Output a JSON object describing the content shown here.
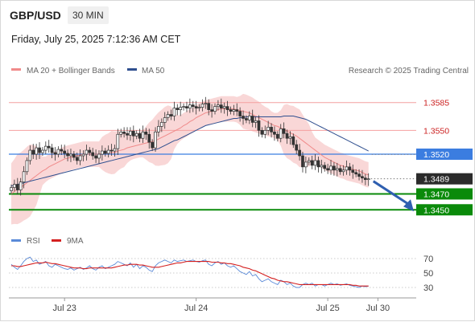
{
  "header": {
    "pair": "GBP/USD",
    "timeframe": "30 MIN",
    "datetime": "Friday, July 25, 2025 7:12:36 AM CET"
  },
  "legend": {
    "ma20_label": "MA 20 + Bollinger Bands",
    "ma50_label": "MA 50",
    "credit": "Research © 2025 Trading Central",
    "rsi_label": "RSI",
    "rsi9_label": "9MA"
  },
  "colors": {
    "ma20": "#f08a8a",
    "ma50": "#2f4f8f",
    "bollinger": "#f7c9c9",
    "resistance": "#f4a0a0",
    "resistance_text": "#cc2222",
    "pivot": "#3b7de0",
    "support": "#0a8a0a",
    "current": "#2b2b2b",
    "arrow": "#2f5fb0",
    "rsi": "#5a8ad8",
    "rsi_ma": "#d42020",
    "candle": "#333333"
  },
  "chart_data": [
    {
      "type": "candlestick",
      "name": "price",
      "ylim": [
        1.3425,
        1.3612
      ],
      "xlim": [
        0,
        130
      ],
      "x_ticks": [
        {
          "x": 17,
          "label": "Jul 23"
        },
        {
          "x": 59,
          "label": "Jul 24"
        },
        {
          "x": 101,
          "label": "Jul 25"
        },
        {
          "x": 117,
          "label": "Jul 30"
        }
      ],
      "levels": [
        {
          "value": 1.3585,
          "label": "1.3585",
          "kind": "resistance"
        },
        {
          "value": 1.355,
          "label": "1.3550",
          "kind": "resistance"
        },
        {
          "value": 1.352,
          "label": "1.3520",
          "kind": "pivot"
        },
        {
          "value": 1.3489,
          "label": "1.3489",
          "kind": "current"
        },
        {
          "value": 1.347,
          "label": "1.3470",
          "kind": "support"
        },
        {
          "value": 1.345,
          "label": "1.3450",
          "kind": "support"
        }
      ],
      "close": [
        1.3478,
        1.3482,
        1.3475,
        1.3485,
        1.3498,
        1.3512,
        1.3525,
        1.352,
        1.3528,
        1.3522,
        1.3525,
        1.353,
        1.3528,
        1.3522,
        1.352,
        1.3526,
        1.3524,
        1.3521,
        1.3518,
        1.352,
        1.3516,
        1.3512,
        1.3518,
        1.352,
        1.3525,
        1.3522,
        1.3518,
        1.3515,
        1.352,
        1.3524,
        1.3521,
        1.3525,
        1.3524,
        1.3527,
        1.3545,
        1.3548,
        1.3546,
        1.3544,
        1.3549,
        1.3543,
        1.3546,
        1.354,
        1.3548,
        1.3545,
        1.3535,
        1.3528,
        1.3548,
        1.3555,
        1.356,
        1.3566,
        1.357,
        1.3568,
        1.3578,
        1.3576,
        1.3579,
        1.358,
        1.3578,
        1.3582,
        1.358,
        1.3578,
        1.3579,
        1.3583,
        1.3584,
        1.3576,
        1.3574,
        1.358,
        1.3582,
        1.3578,
        1.358,
        1.3576,
        1.3574,
        1.3576,
        1.3574,
        1.3568,
        1.3565,
        1.3563,
        1.3568,
        1.356,
        1.3562,
        1.355,
        1.3545,
        1.355,
        1.3554,
        1.3548,
        1.3545,
        1.354,
        1.3552,
        1.3546,
        1.354,
        1.3542,
        1.3532,
        1.3525,
        1.3518,
        1.3504,
        1.351,
        1.3512,
        1.3506,
        1.3512,
        1.3504,
        1.3506,
        1.3502,
        1.35,
        1.3505,
        1.35,
        1.3502,
        1.3498,
        1.35,
        1.3504,
        1.35,
        1.3497,
        1.3495,
        1.3492,
        1.349,
        1.3488,
        1.3489
      ],
      "ma20": [
        1.347,
        1.3473,
        1.3476,
        1.3478,
        1.3481,
        1.3484,
        1.3487,
        1.349,
        1.3493,
        1.3496,
        1.3499,
        1.3501,
        1.3504,
        1.3506,
        1.3508,
        1.351,
        1.3512,
        1.3514,
        1.3515,
        1.3516,
        1.3517,
        1.3518,
        1.3519,
        1.352,
        1.352,
        1.352,
        1.352,
        1.352,
        1.352,
        1.3521,
        1.3521,
        1.3521,
        1.3522,
        1.3522,
        1.3524,
        1.3525,
        1.3526,
        1.3528,
        1.3529,
        1.353,
        1.3531,
        1.3532,
        1.3533,
        1.3534,
        1.3535,
        1.3536,
        1.3537,
        1.3539,
        1.3541,
        1.3543,
        1.3545,
        1.3547,
        1.3549,
        1.3551,
        1.3553,
        1.3556,
        1.3558,
        1.3561,
        1.3563,
        1.3566,
        1.3568,
        1.357,
        1.3572,
        1.3573,
        1.3574,
        1.3575,
        1.3576,
        1.3577,
        1.3577,
        1.3577,
        1.3577,
        1.3577,
        1.3576,
        1.3575,
        1.3574,
        1.3573,
        1.3572,
        1.357,
        1.3568,
        1.3566,
        1.3564,
        1.3562,
        1.356,
        1.3558,
        1.3556,
        1.3555,
        1.3553,
        1.3551,
        1.3549,
        1.3547,
        1.3545,
        1.3543,
        1.354,
        1.3537,
        1.3534,
        1.3531,
        1.3528,
        1.3525,
        1.3522,
        1.3519,
        1.3516,
        1.3514,
        1.3512,
        1.351,
        1.3508,
        1.3506,
        1.3505,
        1.3503,
        1.3502,
        1.3501,
        1.35,
        1.3499,
        1.3497,
        1.3495,
        1.3494
      ],
      "ma50": [
        1.348,
        1.3481,
        1.3482,
        1.3483,
        1.3484,
        1.3485,
        1.3486,
        1.3487,
        1.3488,
        1.3489,
        1.349,
        1.3491,
        1.3492,
        1.3493,
        1.3494,
        1.3495,
        1.3496,
        1.3497,
        1.3498,
        1.3499,
        1.35,
        1.3501,
        1.3502,
        1.3503,
        1.3504,
        1.3505,
        1.3506,
        1.3507,
        1.3508,
        1.3509,
        1.351,
        1.3511,
        1.3512,
        1.3513,
        1.3514,
        1.3515,
        1.3516,
        1.3517,
        1.3518,
        1.3519,
        1.352,
        1.3521,
        1.3522,
        1.3523,
        1.3524,
        1.3525,
        1.3526,
        1.3527,
        1.3529,
        1.3531,
        1.3533,
        1.3535,
        1.3537,
        1.3538,
        1.354,
        1.3542,
        1.3544,
        1.3546,
        1.3548,
        1.355,
        1.3552,
        1.3554,
        1.3556,
        1.3557,
        1.3558,
        1.3559,
        1.356,
        1.3561,
        1.3562,
        1.3563,
        1.3564,
        1.3565,
        1.3565,
        1.3566,
        1.3566,
        1.3567,
        1.3567,
        1.3567,
        1.3567,
        1.3567,
        1.3567,
        1.3567,
        1.3567,
        1.3567,
        1.3567,
        1.3567,
        1.3567,
        1.3568,
        1.3568,
        1.3568,
        1.3568,
        1.3567,
        1.3566,
        1.3565,
        1.3564,
        1.3562,
        1.356,
        1.3558,
        1.3556,
        1.3554,
        1.3552,
        1.355,
        1.3548,
        1.3546,
        1.3544,
        1.3542,
        1.354,
        1.3538,
        1.3536,
        1.3534,
        1.3532,
        1.353,
        1.3528,
        1.3526,
        1.3524
      ]
    },
    {
      "type": "line",
      "name": "rsi",
      "ylim": [
        20,
        80
      ],
      "y_ticks": [
        70,
        50,
        30
      ],
      "series": [
        {
          "name": "RSI",
          "values": [
            62,
            58,
            55,
            60,
            66,
            70,
            72,
            66,
            68,
            62,
            64,
            66,
            60,
            58,
            62,
            60,
            58,
            56,
            55,
            57,
            54,
            56,
            58,
            55,
            57,
            60,
            56,
            54,
            58,
            60,
            56,
            58,
            60,
            62,
            66,
            64,
            62,
            60,
            64,
            58,
            62,
            56,
            60,
            58,
            54,
            52,
            60,
            64,
            66,
            68,
            66,
            64,
            68,
            66,
            67,
            68,
            66,
            67,
            68,
            66,
            65,
            67,
            68,
            62,
            60,
            64,
            66,
            62,
            64,
            60,
            58,
            60,
            56,
            52,
            50,
            48,
            52,
            46,
            48,
            42,
            38,
            40,
            42,
            38,
            36,
            34,
            40,
            38,
            34,
            36,
            32,
            30,
            30,
            34,
            36,
            34,
            36,
            32,
            34,
            34,
            32,
            34,
            36,
            34,
            35,
            33,
            34,
            35,
            33,
            32,
            31,
            30,
            32,
            31,
            32
          ]
        },
        {
          "name": "9MA",
          "values": [
            60,
            60,
            59,
            59,
            60,
            61,
            62,
            63,
            64,
            64,
            64,
            65,
            64,
            63,
            63,
            62,
            61,
            60,
            59,
            58,
            57,
            57,
            57,
            56,
            56,
            57,
            57,
            57,
            57,
            57,
            57,
            57,
            57,
            58,
            59,
            60,
            61,
            61,
            62,
            62,
            62,
            61,
            61,
            60,
            59,
            58,
            58,
            58,
            59,
            60,
            61,
            62,
            63,
            64,
            64,
            65,
            66,
            66,
            66,
            66,
            66,
            66,
            66,
            66,
            65,
            65,
            65,
            64,
            64,
            63,
            63,
            62,
            61,
            60,
            58,
            57,
            56,
            54,
            53,
            51,
            49,
            47,
            45,
            43,
            42,
            40,
            39,
            38,
            38,
            37,
            36,
            35,
            34,
            34,
            34,
            34,
            34,
            34,
            34,
            34,
            34,
            34,
            34,
            34,
            34,
            34,
            34,
            34,
            34,
            33,
            33,
            32,
            32,
            32,
            32
          ]
        }
      ]
    }
  ]
}
